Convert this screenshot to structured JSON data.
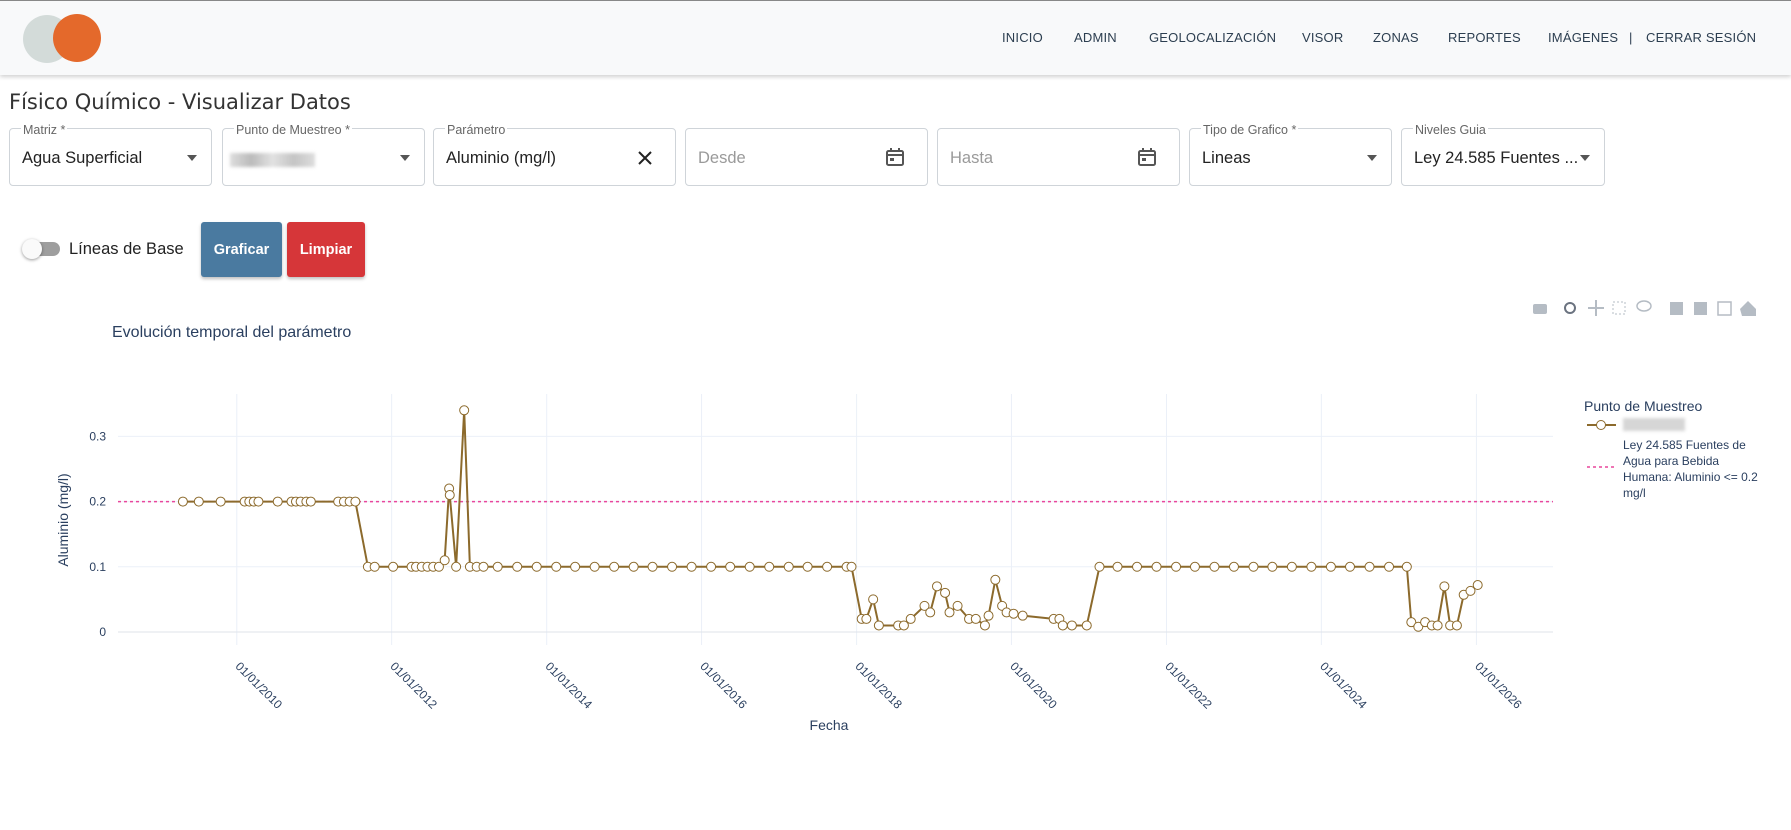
{
  "nav": [
    "INICIO",
    "ADMIN",
    "GEOLOCALIZACIÓN",
    "VISOR",
    "ZONAS",
    "REPORTES",
    "IMÁGENES",
    "CERRAR SESIÓN"
  ],
  "page_title": "Físico Químico - Visualizar Datos",
  "filters": [
    {
      "label": "Matriz *",
      "value": "Agua Superficial"
    },
    {
      "label": "Punto de Muestreo *"
    },
    {
      "label": "Parámetro",
      "value": "Aluminio (mg/l)"
    },
    {
      "placeholder": "Desde"
    },
    {
      "placeholder": "Hasta"
    },
    {
      "label": "Tipo de Grafico *",
      "value": "Lineas"
    },
    {
      "label": "Niveles Guia",
      "value": "Ley 24.585 Fuentes ..."
    }
  ],
  "toggle_label": "Líneas de Base",
  "buttons": [
    "Graficar",
    "Limpiar"
  ],
  "chart_data": {
    "type": "line",
    "title": "Evolución temporal del parámetro",
    "x_label": "Fecha",
    "y_label": "Aluminio (mg/l)",
    "legend_title": "Punto de Muestreo",
    "xlim": [
      "2008-06-20",
      "2026-12-28"
    ],
    "xticks": [
      {
        "value": "2010-01-01",
        "label": "01/01/2010"
      },
      {
        "value": "2012-01-01",
        "label": "01/01/2012"
      },
      {
        "value": "2014-01-01",
        "label": "01/01/2014"
      },
      {
        "value": "2016-01-01",
        "label": "01/01/2016"
      },
      {
        "value": "2018-01-01",
        "label": "01/01/2018"
      },
      {
        "value": "2020-01-01",
        "label": "01/01/2020"
      },
      {
        "value": "2022-01-01",
        "label": "01/01/2022"
      },
      {
        "value": "2024-01-01",
        "label": "01/01/2024"
      },
      {
        "value": "2026-01-01",
        "label": "01/01/2026"
      }
    ],
    "ylim": [
      -0.02,
      0.365
    ],
    "yticks": [
      0,
      0.1,
      0.2,
      0.3
    ],
    "grid": true,
    "series": [
      {
        "color": "#8c6a2c",
        "x": [
          "2009-04-22",
          "2009-07-06",
          "2009-10-17",
          "2010-02-07",
          "2010-03-01",
          "2010-03-22",
          "2010-04-13",
          "2010-07-13",
          "2010-09-16",
          "2010-10-07",
          "2010-10-29",
          "2010-11-25",
          "2010-12-16",
          "2011-04-24",
          "2011-05-21",
          "2011-06-17",
          "2011-07-14",
          "2011-09-11",
          "2011-10-13",
          "2012-01-08",
          "2012-04-04",
          "2012-04-25",
          "2012-05-22",
          "2012-06-18",
          "2012-07-15",
          "2012-08-11",
          "2012-09-07",
          "2012-09-28",
          "2012-10-01",
          "2012-10-31",
          "2012-12-08",
          "2013-01-04",
          "2013-02-05",
          "2013-03-09",
          "2013-05-15",
          "2013-08-15",
          "2013-11-15",
          "2014-02-15",
          "2014-05-15",
          "2014-08-15",
          "2014-11-15",
          "2015-02-15",
          "2015-05-15",
          "2015-08-15",
          "2015-11-15",
          "2016-02-15",
          "2016-05-15",
          "2016-08-15",
          "2016-11-15",
          "2017-02-15",
          "2017-05-15",
          "2017-08-15",
          "2017-11-15",
          "2017-12-08",
          "2018-01-25",
          "2018-02-16",
          "2018-03-20",
          "2018-04-16",
          "2018-07-16",
          "2018-08-12",
          "2018-09-13",
          "2018-11-17",
          "2018-12-14",
          "2019-01-15",
          "2019-02-22",
          "2019-03-15",
          "2019-04-22",
          "2019-06-15",
          "2019-07-17",
          "2019-08-29",
          "2019-09-15",
          "2019-10-17",
          "2019-11-18",
          "2019-12-09",
          "2020-01-11",
          "2020-02-23",
          "2020-07-18",
          "2020-08-14",
          "2020-08-30",
          "2020-10-12",
          "2020-12-21",
          "2021-02-19",
          "2021-05-15",
          "2021-08-15",
          "2021-11-15",
          "2022-02-15",
          "2022-05-15",
          "2022-08-15",
          "2022-11-15",
          "2023-02-15",
          "2023-05-15",
          "2023-08-15",
          "2023-11-15",
          "2024-02-15",
          "2024-05-15",
          "2024-08-15",
          "2024-11-15",
          "2025-02-07",
          "2025-02-28",
          "2025-04-02",
          "2025-05-04",
          "2025-06-05",
          "2025-07-02",
          "2025-08-03",
          "2025-08-30",
          "2025-10-01",
          "2025-11-02",
          "2025-12-04",
          "2026-01-07"
        ],
        "values": [
          0.2,
          0.2,
          0.2,
          0.2,
          0.2,
          0.2,
          0.2,
          0.2,
          0.2,
          0.2,
          0.2,
          0.2,
          0.2,
          0.2,
          0.2,
          0.2,
          0.2,
          0.1,
          0.1,
          0.1,
          0.1,
          0.1,
          0.1,
          0.1,
          0.1,
          0.1,
          0.11,
          0.22,
          0.21,
          0.1,
          0.34,
          0.1,
          0.1,
          0.1,
          0.1,
          0.1,
          0.1,
          0.1,
          0.1,
          0.1,
          0.1,
          0.1,
          0.1,
          0.1,
          0.1,
          0.1,
          0.1,
          0.1,
          0.1,
          0.1,
          0.1,
          0.1,
          0.1,
          0.1,
          0.02,
          0.02,
          0.05,
          0.01,
          0.01,
          0.01,
          0.02,
          0.04,
          0.03,
          0.07,
          0.06,
          0.03,
          0.04,
          0.02,
          0.02,
          0.01,
          0.025,
          0.08,
          0.04,
          0.03,
          0.028,
          0.025,
          0.02,
          0.02,
          0.01,
          0.01,
          0.01,
          0.1,
          0.1,
          0.1,
          0.1,
          0.1,
          0.1,
          0.1,
          0.1,
          0.1,
          0.1,
          0.1,
          0.1,
          0.1,
          0.1,
          0.1,
          0.1,
          0.1,
          0.015,
          0.008,
          0.015,
          0.01,
          0.01,
          0.07,
          0.01,
          0.01,
          0.057,
          0.063,
          0.072
        ]
      }
    ],
    "hlines": [
      {
        "name": "Ley 24.585 Fuentes de Agua para Bebida Humana: Aluminio <= 0.2 mg/l",
        "value": 0.2,
        "color": "#e8479c"
      }
    ]
  }
}
